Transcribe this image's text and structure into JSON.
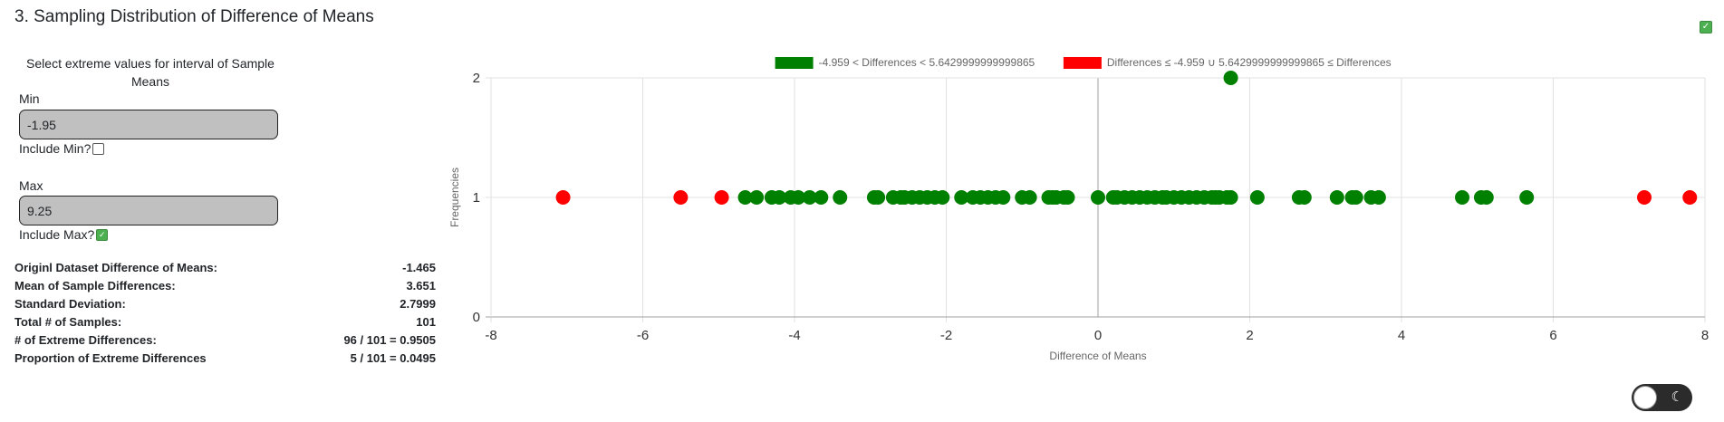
{
  "section": {
    "title": "3. Sampling Distribution of Difference of Means"
  },
  "controls": {
    "instruction": "Select extreme values for interval of Sample Means",
    "min_label": "Min",
    "min_value": "-1.95",
    "include_min_label": "Include Min?",
    "include_min_checked": false,
    "max_label": "Max",
    "max_value": "9.25",
    "include_max_label": "Include Max?",
    "include_max_checked": true
  },
  "stats": [
    {
      "label": "Originl Dataset Difference of Means:",
      "value": "-1.465"
    },
    {
      "label": "Mean of Sample Differences:",
      "value": "3.651"
    },
    {
      "label": "Standard Deviation:",
      "value": "2.7999"
    },
    {
      "label": "Total # of Samples:",
      "value": "101"
    },
    {
      "label": "# of Extreme Differences:",
      "value": "96 / 101 = 0.9505"
    },
    {
      "label": "Proportion of Extreme Differences",
      "value": "5 / 101 = 0.0495"
    }
  ],
  "chart_data": {
    "type": "scatter",
    "xlabel": "Difference of Means",
    "ylabel": "Frequencies",
    "xlim": [
      -8,
      8
    ],
    "ylim": [
      0,
      2
    ],
    "xticks": [
      -8,
      -6,
      -4,
      -2,
      0,
      2,
      4,
      6,
      8
    ],
    "yticks": [
      0,
      1,
      2
    ],
    "grid": true,
    "legend_position": "top",
    "series": [
      {
        "name": "-4.959 < Differences < 5.6429999999999865",
        "color": "#008000",
        "points": [
          [
            -4.65,
            1
          ],
          [
            -4.5,
            1
          ],
          [
            -4.3,
            1
          ],
          [
            -4.2,
            1
          ],
          [
            -4.05,
            1
          ],
          [
            -3.95,
            1
          ],
          [
            -3.8,
            1
          ],
          [
            -3.65,
            1
          ],
          [
            -3.4,
            1
          ],
          [
            -2.95,
            1
          ],
          [
            -2.9,
            1
          ],
          [
            -2.7,
            1
          ],
          [
            -2.6,
            1
          ],
          [
            -2.55,
            1
          ],
          [
            -2.45,
            1
          ],
          [
            -2.35,
            1
          ],
          [
            -2.25,
            1
          ],
          [
            -2.15,
            1
          ],
          [
            -2.05,
            1
          ],
          [
            -1.8,
            1
          ],
          [
            -1.65,
            1
          ],
          [
            -1.55,
            1
          ],
          [
            -1.45,
            1
          ],
          [
            -1.35,
            1
          ],
          [
            -1.25,
            1
          ],
          [
            -1.0,
            1
          ],
          [
            -0.9,
            1
          ],
          [
            -0.65,
            1
          ],
          [
            -0.6,
            1
          ],
          [
            -0.55,
            1
          ],
          [
            -0.45,
            1
          ],
          [
            -0.4,
            1
          ],
          [
            0.0,
            1
          ],
          [
            0.2,
            1
          ],
          [
            0.25,
            1
          ],
          [
            0.35,
            1
          ],
          [
            0.45,
            1
          ],
          [
            0.55,
            1
          ],
          [
            0.65,
            1
          ],
          [
            0.75,
            1
          ],
          [
            0.85,
            1
          ],
          [
            0.9,
            1
          ],
          [
            1.0,
            1
          ],
          [
            1.1,
            1
          ],
          [
            1.2,
            1
          ],
          [
            1.3,
            1
          ],
          [
            1.4,
            1
          ],
          [
            1.5,
            1
          ],
          [
            1.55,
            1
          ],
          [
            1.6,
            1
          ],
          [
            1.7,
            1
          ],
          [
            1.75,
            1
          ],
          [
            1.75,
            2
          ],
          [
            2.1,
            1
          ],
          [
            2.65,
            1
          ],
          [
            2.72,
            1
          ],
          [
            3.15,
            1
          ],
          [
            3.35,
            1
          ],
          [
            3.4,
            1
          ],
          [
            3.6,
            1
          ],
          [
            3.7,
            1
          ],
          [
            4.8,
            1
          ],
          [
            5.05,
            1
          ],
          [
            5.12,
            1
          ],
          [
            5.65,
            1
          ]
        ]
      },
      {
        "name": "Differences ≤ -4.959 ∪ 5.6429999999999865 ≤ Differences",
        "color": "#ff0000",
        "points": [
          [
            -7.05,
            1
          ],
          [
            -5.5,
            1
          ],
          [
            -4.96,
            1
          ],
          [
            7.2,
            1
          ],
          [
            7.8,
            1
          ]
        ]
      }
    ]
  },
  "theme_toggle": {
    "icon": "moon-icon",
    "state": "light"
  }
}
